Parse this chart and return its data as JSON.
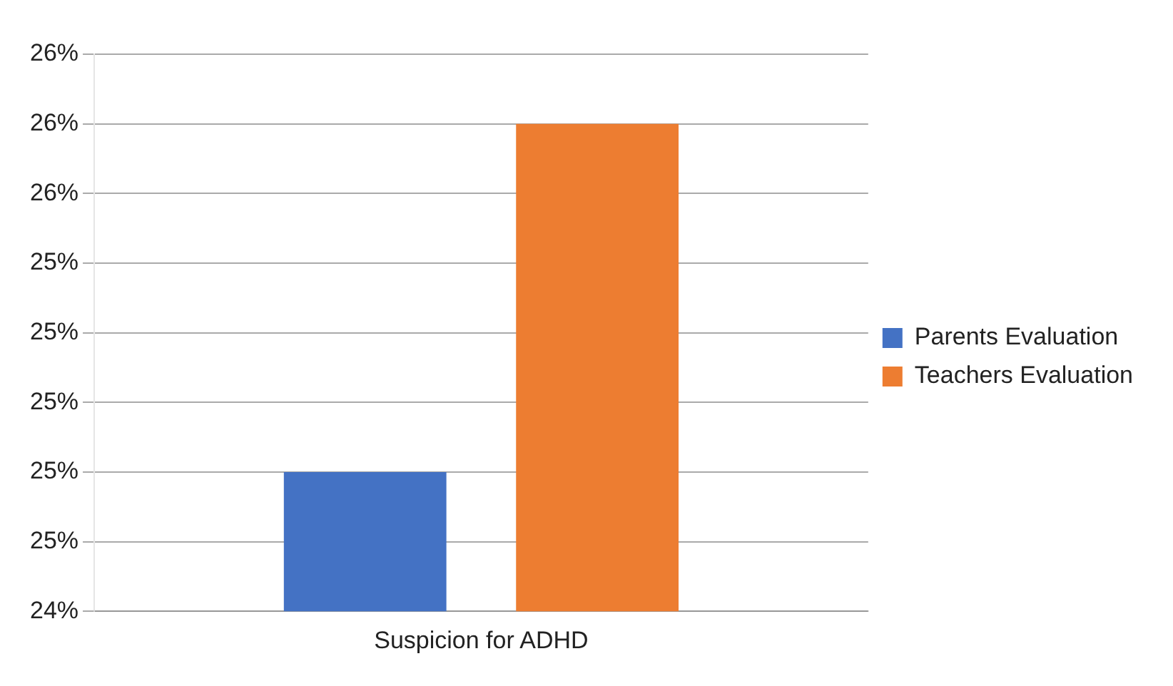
{
  "chart_data": {
    "type": "bar",
    "categories": [
      "Suspicion for ADHD"
    ],
    "series": [
      {
        "name": "Parents Evaluation",
        "color": "#4472c4",
        "values": [
          24.8
        ]
      },
      {
        "name": "Teachers Evaluation",
        "color": "#ed7d31",
        "values": [
          25.8
        ]
      }
    ],
    "ylim": [
      24.4,
      26.0
    ],
    "yticks": [
      {
        "value": 24.4,
        "label": "24%"
      },
      {
        "value": 24.6,
        "label": "25%"
      },
      {
        "value": 24.8,
        "label": "25%"
      },
      {
        "value": 25.0,
        "label": "25%"
      },
      {
        "value": 25.2,
        "label": "25%"
      },
      {
        "value": 25.4,
        "label": "25%"
      },
      {
        "value": 25.6,
        "label": "26%"
      },
      {
        "value": 25.8,
        "label": "26%"
      },
      {
        "value": 26.0,
        "label": "26%"
      }
    ],
    "grid": "y",
    "legend": "right"
  }
}
